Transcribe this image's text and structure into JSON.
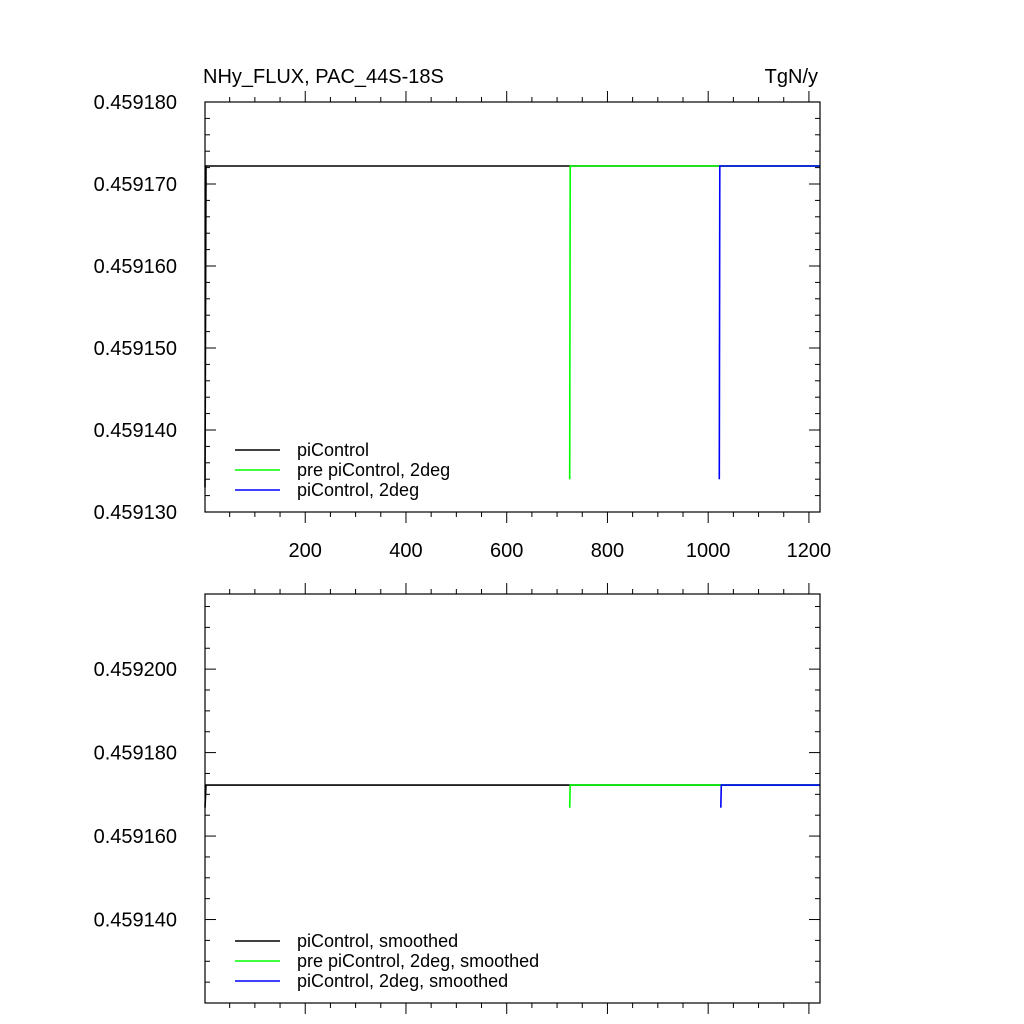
{
  "chart_data": [
    {
      "type": "line",
      "title": "NHy_FLUX, PAC_44S-18S",
      "units": "TgN/y",
      "xlim": [
        1,
        1222
      ],
      "ylim": [
        0.45913,
        0.45918
      ],
      "x_ticks": [
        200,
        400,
        600,
        800,
        1000,
        1200
      ],
      "y_ticks": [
        0.45913,
        0.45914,
        0.45915,
        0.45916,
        0.45917,
        0.45918
      ],
      "y_tick_labels": [
        "0.459130",
        "0.459140",
        "0.459150",
        "0.459160",
        "0.459170",
        "0.459180"
      ],
      "grid": false,
      "legend_position": "bottom-left",
      "series": [
        {
          "name": "piControl",
          "color": "#000000",
          "x": [
            1,
            3,
            1222
          ],
          "y": [
            0.459133,
            0.4591722,
            0.4591722
          ]
        },
        {
          "name": "pre piControl, 2deg",
          "color": "#00ff00",
          "x": [
            725,
            726,
            1222
          ],
          "y": [
            0.459134,
            0.4591722,
            0.4591722
          ]
        },
        {
          "name": "piControl, 2deg",
          "color": "#0000ff",
          "x": [
            1022,
            1023,
            1222
          ],
          "y": [
            0.459134,
            0.4591722,
            0.4591722
          ]
        }
      ]
    },
    {
      "type": "line",
      "xlim": [
        1,
        1222
      ],
      "ylim": [
        0.45912,
        0.459218
      ],
      "x_ticks": [
        200,
        400,
        600,
        800,
        1000,
        1200
      ],
      "y_ticks": [
        0.45914,
        0.45916,
        0.45918,
        0.4592
      ],
      "y_tick_labels": [
        "0.459140",
        "0.459160",
        "0.459180",
        "0.459200"
      ],
      "grid": false,
      "legend_position": "bottom-left",
      "series": [
        {
          "name": "piControl, smoothed",
          "color": "#000000",
          "x": [
            1,
            3,
            1222
          ],
          "y": [
            0.4591668,
            0.4591722,
            0.4591722
          ]
        },
        {
          "name": "pre piControl, 2deg, smoothed",
          "color": "#00ff00",
          "x": [
            725,
            726,
            1222
          ],
          "y": [
            0.4591668,
            0.4591722,
            0.4591722
          ]
        },
        {
          "name": "piControl, 2deg, smoothed",
          "color": "#0000ff",
          "x": [
            1025,
            1026,
            1222
          ],
          "y": [
            0.4591668,
            0.4591722,
            0.4591722
          ]
        }
      ]
    }
  ]
}
